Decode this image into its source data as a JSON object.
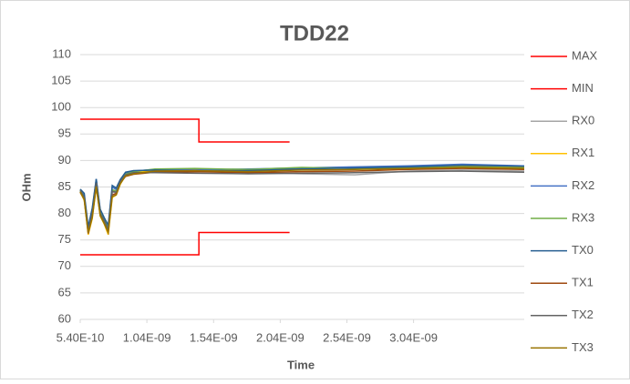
{
  "chart_data": {
    "type": "line",
    "title": "TDD22",
    "xlabel": "Time",
    "ylabel": "OHm",
    "xlim": [
      5.4e-10,
      3.87e-09
    ],
    "xticks": [
      {
        "value": 5.4e-10,
        "label": "5.40E-10"
      },
      {
        "value": 1.04e-09,
        "label": "1.04E-09"
      },
      {
        "value": 1.54e-09,
        "label": "1.54E-09"
      },
      {
        "value": 2.04e-09,
        "label": "2.04E-09"
      },
      {
        "value": 2.54e-09,
        "label": "2.54E-09"
      },
      {
        "value": 3.04e-09,
        "label": "3.04E-09"
      }
    ],
    "ylim": [
      60,
      110
    ],
    "yticks": [
      60,
      65,
      70,
      75,
      80,
      85,
      90,
      95,
      100,
      105,
      110
    ],
    "grid": true,
    "legend": "right",
    "x": [
      5.4e-10,
      5.7e-10,
      6e-10,
      6.3e-10,
      6.6e-10,
      6.9e-10,
      7.2e-10,
      7.5e-10,
      7.8e-10,
      8.1e-10,
      8.4e-10,
      8.8e-10,
      9.4e-10,
      1.1e-09,
      1.4e-09,
      1.8e-09,
      2.2e-09,
      2.6e-09,
      3e-09,
      3.4e-09,
      3.87e-09
    ],
    "series": [
      {
        "name": "MAX",
        "color": "#ff0000",
        "x": [
          5.4e-10,
          1.43e-09,
          1.43e-09,
          2.11e-09
        ],
        "values": [
          97.8,
          97.8,
          93.5,
          93.5
        ]
      },
      {
        "name": "MIN",
        "color": "#ff0000",
        "x": [
          5.4e-10,
          1.43e-09,
          1.43e-09,
          2.11e-09
        ],
        "values": [
          72.2,
          72.2,
          76.4,
          76.4
        ]
      },
      {
        "name": "RX0",
        "color": "#a5a5a5",
        "values": [
          84.5,
          83,
          76.5,
          80,
          85.5,
          80,
          78.5,
          77,
          84,
          84,
          86,
          87.5,
          87.8,
          87.9,
          88,
          87.8,
          87.5,
          87.3,
          88,
          88.2,
          88
        ]
      },
      {
        "name": "RX1",
        "color": "#ffc000",
        "values": [
          84,
          82.5,
          76,
          79,
          85,
          79.5,
          78,
          76,
          83,
          83.5,
          85.5,
          87.2,
          87.6,
          88.2,
          88.4,
          88.2,
          88.5,
          88.6,
          88.8,
          89,
          88.8
        ]
      },
      {
        "name": "RX2",
        "color": "#4472c4",
        "values": [
          84.2,
          83.5,
          77,
          80.5,
          86.5,
          80.5,
          79,
          77.5,
          85,
          84.5,
          86.2,
          87.6,
          88,
          88.3,
          88.2,
          88.4,
          88.6,
          88.8,
          89,
          89.3,
          89
        ]
      },
      {
        "name": "RX3",
        "color": "#70ad47",
        "values": [
          84.3,
          83.2,
          76.8,
          80.2,
          86,
          80.2,
          78.8,
          77.2,
          84.5,
          84.2,
          86,
          87.4,
          87.9,
          88.4,
          88.5,
          88.3,
          88.7,
          88.5,
          88.6,
          88.8,
          88.6
        ]
      },
      {
        "name": "TX0",
        "color": "#255e91",
        "values": [
          84.6,
          83.8,
          77.5,
          81,
          86.5,
          80.8,
          79.2,
          77.8,
          85.3,
          84.8,
          86.4,
          87.8,
          88.1,
          88.2,
          88,
          88.1,
          88.4,
          88.6,
          88.8,
          89.1,
          88.9
        ]
      },
      {
        "name": "TX1",
        "color": "#9e480e",
        "values": [
          84,
          82.8,
          76.2,
          79.5,
          85.2,
          79.8,
          78.2,
          76.5,
          83.5,
          83.8,
          85.8,
          87,
          87.4,
          87.8,
          87.9,
          87.7,
          87.9,
          88,
          88.3,
          88.5,
          88.3
        ]
      },
      {
        "name": "TX2",
        "color": "#636363",
        "values": [
          84.4,
          83,
          76.7,
          80,
          85.8,
          80,
          78.6,
          77,
          84.2,
          84,
          86,
          87.3,
          87.7,
          87.7,
          87.6,
          87.5,
          87.6,
          87.7,
          87.9,
          88,
          87.8
        ]
      },
      {
        "name": "TX3",
        "color": "#997300",
        "values": [
          84.1,
          82.6,
          76.3,
          79.2,
          85.1,
          79.6,
          78.1,
          76.4,
          83.2,
          83.5,
          85.6,
          87.1,
          87.5,
          88,
          88.1,
          87.9,
          88.2,
          88.3,
          88.5,
          88.7,
          88.5
        ]
      }
    ]
  }
}
